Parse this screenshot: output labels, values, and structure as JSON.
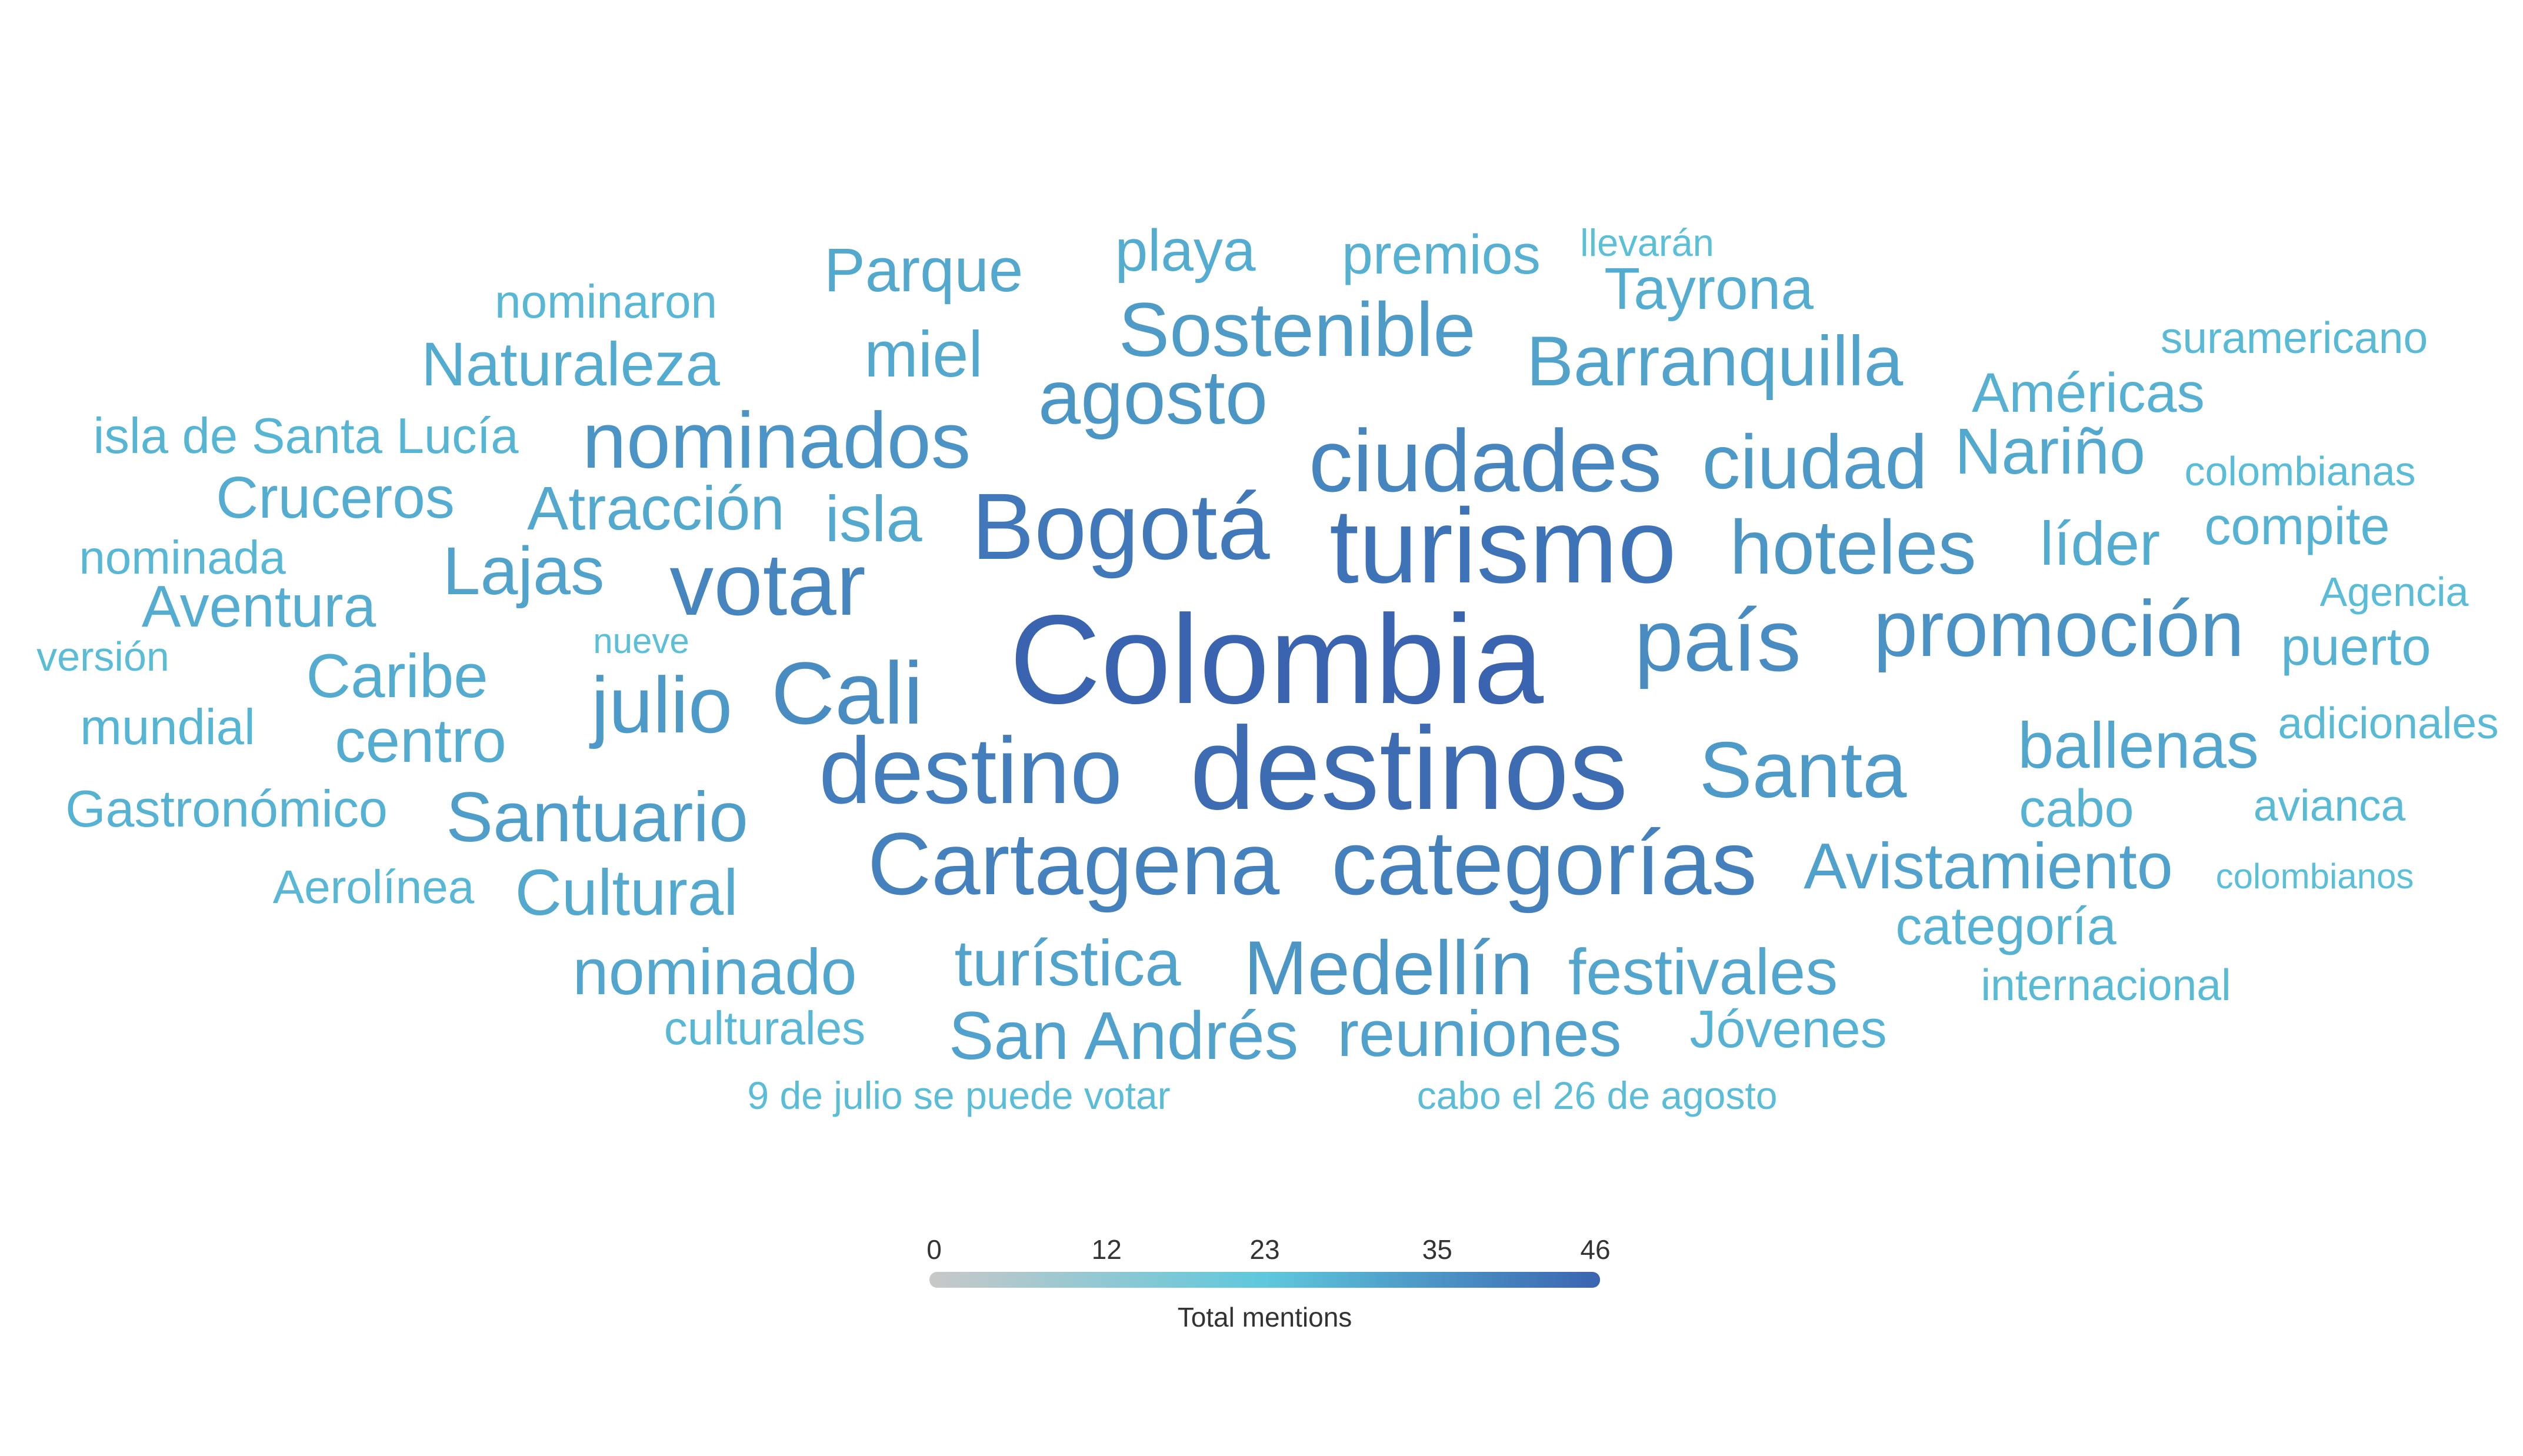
{
  "chart_data": {
    "type": "wordcloud",
    "words": [
      {
        "text": "Colombia",
        "value": 46
      },
      {
        "text": "destinos",
        "value": 43
      },
      {
        "text": "turismo",
        "value": 40
      },
      {
        "text": "Bogotá",
        "value": 38
      },
      {
        "text": "destino",
        "value": 36
      },
      {
        "text": "categorías",
        "value": 35
      },
      {
        "text": "Cartagena",
        "value": 34
      },
      {
        "text": "ciudades",
        "value": 33
      },
      {
        "text": "votar",
        "value": 33
      },
      {
        "text": "país",
        "value": 30
      },
      {
        "text": "Cali",
        "value": 30
      },
      {
        "text": "promoción",
        "value": 28
      },
      {
        "text": "nominados",
        "value": 27
      },
      {
        "text": "agosto",
        "value": 26
      },
      {
        "text": "Medellín",
        "value": 26
      },
      {
        "text": "hoteles",
        "value": 26
      },
      {
        "text": "Santa",
        "value": 25
      },
      {
        "text": "ciudad",
        "value": 25
      },
      {
        "text": "julio",
        "value": 25
      },
      {
        "text": "Sostenible",
        "value": 24
      },
      {
        "text": "Santuario",
        "value": 23
      },
      {
        "text": "Avistamiento",
        "value": 22
      },
      {
        "text": "San Andrés",
        "value": 22
      },
      {
        "text": "reuniones",
        "value": 22
      },
      {
        "text": "Barranquilla",
        "value": 21
      },
      {
        "text": "Lajas",
        "value": 21
      },
      {
        "text": "turística",
        "value": 21
      },
      {
        "text": "festivales",
        "value": 20
      },
      {
        "text": "ballenas",
        "value": 20
      },
      {
        "text": "nominado",
        "value": 20
      },
      {
        "text": "Cultural",
        "value": 19
      },
      {
        "text": "isla",
        "value": 19
      },
      {
        "text": "Atracción",
        "value": 19
      },
      {
        "text": "Parque",
        "value": 19
      },
      {
        "text": "miel",
        "value": 19
      },
      {
        "text": "Nariño",
        "value": 19
      },
      {
        "text": "Naturaleza",
        "value": 18
      },
      {
        "text": "centro",
        "value": 18
      },
      {
        "text": "líder",
        "value": 18
      },
      {
        "text": "Caribe",
        "value": 18
      },
      {
        "text": "Tayrona",
        "value": 17
      },
      {
        "text": "playa",
        "value": 17
      },
      {
        "text": "Cruceros",
        "value": 17
      },
      {
        "text": "Aventura",
        "value": 17
      },
      {
        "text": "Américas",
        "value": 16
      },
      {
        "text": "premios",
        "value": 16
      },
      {
        "text": "puerto",
        "value": 15
      },
      {
        "text": "compite",
        "value": 15
      },
      {
        "text": "cabo",
        "value": 15
      },
      {
        "text": "categoría",
        "value": 15
      },
      {
        "text": "Jóvenes",
        "value": 15
      },
      {
        "text": "Gastronómico",
        "value": 15
      },
      {
        "text": "isla de Santa Lucía",
        "value": 14
      },
      {
        "text": "mundial",
        "value": 14
      },
      {
        "text": "nominaron",
        "value": 13
      },
      {
        "text": "Aerolínea",
        "value": 13
      },
      {
        "text": "culturales",
        "value": 13
      },
      {
        "text": "nominada",
        "value": 13
      },
      {
        "text": "avianca",
        "value": 12
      },
      {
        "text": "suramericano",
        "value": 12
      },
      {
        "text": "internacional",
        "value": 12
      },
      {
        "text": "adicionales",
        "value": 12
      },
      {
        "text": "Agencia",
        "value": 11
      },
      {
        "text": "versión",
        "value": 11
      },
      {
        "text": "colombianas",
        "value": 11
      },
      {
        "text": "9 de julio se puede votar",
        "value": 11
      },
      {
        "text": "cabo el 26 de agosto",
        "value": 11
      },
      {
        "text": "llevarán",
        "value": 10
      },
      {
        "text": "colombianos",
        "value": 10
      },
      {
        "text": "nueve",
        "value": 10
      }
    ],
    "legend": {
      "title": "Total mentions",
      "ticks": [
        0,
        12,
        23,
        35,
        46
      ],
      "range": [
        0,
        46
      ],
      "colors": [
        "#c8c8c8",
        "#5ec8dc",
        "#3a64b0"
      ]
    }
  }
}
